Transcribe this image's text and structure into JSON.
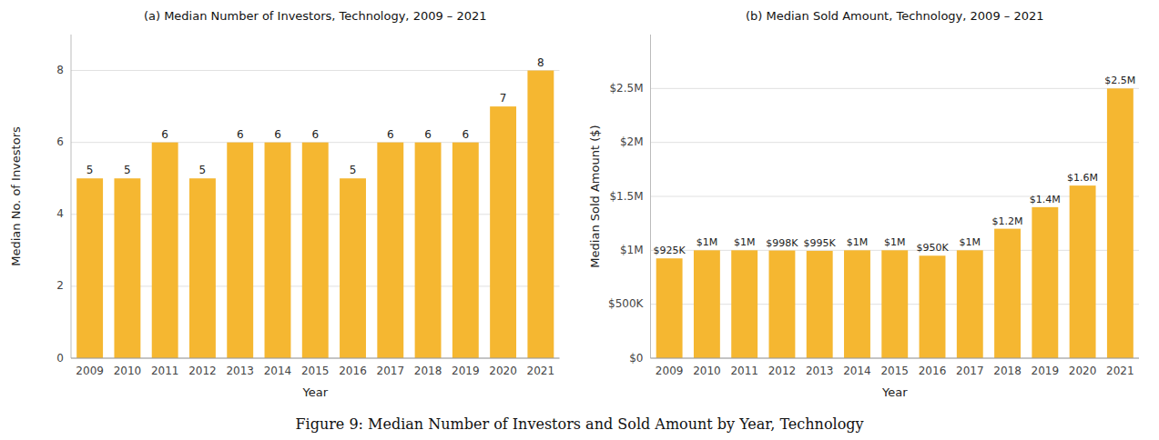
{
  "caption": "Figure 9:  Median Number of Investors and Sold Amount by Year, Technology",
  "chart_data": [
    {
      "type": "bar",
      "title": "(a) Median Number of Investors, Technology, 2009 – 2021",
      "x_label": "Year",
      "y_label": "Median No. of Investors",
      "categories": [
        "2009",
        "2010",
        "2011",
        "2012",
        "2013",
        "2014",
        "2015",
        "2016",
        "2017",
        "2018",
        "2019",
        "2020",
        "2021"
      ],
      "values": [
        5,
        5,
        6,
        5,
        6,
        6,
        6,
        5,
        6,
        6,
        6,
        7,
        8
      ],
      "color": "#F5B731",
      "ylim": [
        0,
        9
      ],
      "yticks": [
        0,
        2,
        4,
        6,
        8
      ],
      "grid": true,
      "data_labels": true
    },
    {
      "type": "bar",
      "title": "(b) Median Sold Amount, Technology, 2009 – 2021",
      "x_label": "Year",
      "y_label": "Median Sold Amount ($)",
      "categories": [
        "2009",
        "2010",
        "2011",
        "2012",
        "2013",
        "2014",
        "2015",
        "2016",
        "2017",
        "2018",
        "2019",
        "2020",
        "2021"
      ],
      "values": [
        925000,
        1000000,
        1000000,
        998000,
        995000,
        1000000,
        1000000,
        950000,
        1000000,
        1200000,
        1400000,
        1600000,
        2500000
      ],
      "value_labels": [
        "$925K",
        "$1M",
        "$1M",
        "$998K",
        "$995K",
        "$1M",
        "$1M",
        "$950K",
        "$1M",
        "$1.2M",
        "$1.4M",
        "$1.6M",
        "$2.5M"
      ],
      "color": "#F5B731",
      "ylim": [
        0,
        3000000
      ],
      "yticks": [
        {
          "value": 0,
          "label": "$0"
        },
        {
          "value": 500000,
          "label": "$500K"
        },
        {
          "value": 1000000,
          "label": "$1M"
        },
        {
          "value": 1500000,
          "label": "$1.5M"
        },
        {
          "value": 2000000,
          "label": "$2M"
        },
        {
          "value": 2500000,
          "label": "$2.5M"
        }
      ],
      "grid": true,
      "data_labels": true
    }
  ]
}
